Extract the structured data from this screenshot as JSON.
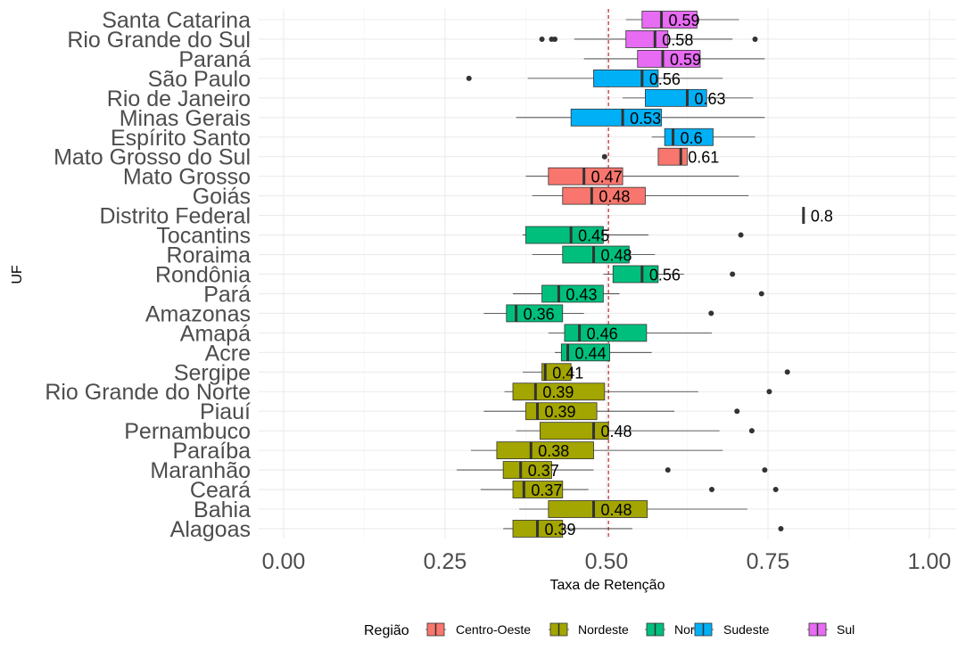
{
  "chart_data": {
    "type": "boxplot",
    "orientation": "horizontal",
    "xlabel": "Taxa de Retenção",
    "ylabel": "UF",
    "xlim": [
      -0.03,
      1.05
    ],
    "xticks": [
      "0.00",
      "0.25",
      "0.50",
      "0.75",
      "1.00"
    ],
    "xtick_values": [
      0,
      0.25,
      0.5,
      0.75,
      1.0
    ],
    "reference_line": {
      "x": 0.503,
      "color": "#c0272d",
      "style": "dashed"
    },
    "legend": {
      "title": "Região",
      "placement": "bottom",
      "items": [
        {
          "name": "Centro-Oeste",
          "color": "#f8766d"
        },
        {
          "name": "Nordeste",
          "color": "#a3a500"
        },
        {
          "name": "Norte",
          "color": "#00bf7d"
        },
        {
          "name": "Sudeste",
          "color": "#00b0f6"
        },
        {
          "name": "Sul",
          "color": "#e76bf3"
        }
      ]
    },
    "categories": [
      {
        "uf": "Santa Catarina",
        "region": "Sul",
        "min": 0.53,
        "q1": 0.555,
        "median": 0.585,
        "q3": 0.64,
        "max": 0.705,
        "outliers": [],
        "label": "0.59"
      },
      {
        "uf": "Rio Grande do Sul",
        "region": "Sul",
        "min": 0.45,
        "q1": 0.53,
        "median": 0.575,
        "q3": 0.595,
        "max": 0.695,
        "outliers": [
          0.4,
          0.415,
          0.42,
          0.73
        ],
        "label": "0.58"
      },
      {
        "uf": "Paraná",
        "region": "Sul",
        "min": 0.465,
        "q1": 0.548,
        "median": 0.587,
        "q3": 0.645,
        "max": 0.745,
        "outliers": [],
        "label": "0.59"
      },
      {
        "uf": "São Paulo",
        "region": "Sudeste",
        "min": 0.378,
        "q1": 0.48,
        "median": 0.555,
        "q3": 0.58,
        "max": 0.68,
        "outliers": [
          0.287
        ],
        "label": "0.56"
      },
      {
        "uf": "Rio de Janeiro",
        "region": "Sudeste",
        "min": 0.525,
        "q1": 0.56,
        "median": 0.625,
        "q3": 0.655,
        "max": 0.727,
        "outliers": [],
        "label": "0.63"
      },
      {
        "uf": "Minas Gerais",
        "region": "Sudeste",
        "min": 0.36,
        "q1": 0.445,
        "median": 0.525,
        "q3": 0.585,
        "max": 0.745,
        "outliers": [],
        "label": "0.53"
      },
      {
        "uf": "Espírito Santo",
        "region": "Sudeste",
        "min": 0.57,
        "q1": 0.59,
        "median": 0.603,
        "q3": 0.665,
        "max": 0.73,
        "outliers": [],
        "label": "0.6"
      },
      {
        "uf": "Mato Grosso do Sul",
        "region": "Centro-Oeste",
        "min": 0.58,
        "q1": 0.58,
        "median": 0.615,
        "q3": 0.625,
        "max": 0.625,
        "outliers": [
          0.497
        ],
        "label": "0.61"
      },
      {
        "uf": "Mato Grosso",
        "region": "Centro-Oeste",
        "min": 0.375,
        "q1": 0.41,
        "median": 0.465,
        "q3": 0.525,
        "max": 0.705,
        "outliers": [],
        "label": "0.47"
      },
      {
        "uf": "Goiás",
        "region": "Centro-Oeste",
        "min": 0.385,
        "q1": 0.432,
        "median": 0.477,
        "q3": 0.56,
        "max": 0.72,
        "outliers": [],
        "label": "0.48"
      },
      {
        "uf": "Distrito Federal",
        "region": "Centro-Oeste",
        "min": 0.805,
        "q1": 0.805,
        "median": 0.805,
        "q3": 0.805,
        "max": 0.805,
        "outliers": [],
        "label": "0.8"
      },
      {
        "uf": "Tocantins",
        "region": "Norte",
        "min": 0.37,
        "q1": 0.375,
        "median": 0.445,
        "q3": 0.495,
        "max": 0.565,
        "outliers": [
          0.708
        ],
        "label": "0.45"
      },
      {
        "uf": "Roraima",
        "region": "Norte",
        "min": 0.385,
        "q1": 0.432,
        "median": 0.48,
        "q3": 0.535,
        "max": 0.575,
        "outliers": [],
        "label": "0.48"
      },
      {
        "uf": "Rondônia",
        "region": "Norte",
        "min": 0.495,
        "q1": 0.51,
        "median": 0.555,
        "q3": 0.58,
        "max": 0.62,
        "outliers": [
          0.695
        ],
        "label": "0.56"
      },
      {
        "uf": "Pará",
        "region": "Norte",
        "min": 0.355,
        "q1": 0.4,
        "median": 0.426,
        "q3": 0.495,
        "max": 0.52,
        "outliers": [
          0.74
        ],
        "label": "0.43"
      },
      {
        "uf": "Amazonas",
        "region": "Norte",
        "min": 0.31,
        "q1": 0.345,
        "median": 0.36,
        "q3": 0.432,
        "max": 0.465,
        "outliers": [
          0.662
        ],
        "label": "0.36"
      },
      {
        "uf": "Amapá",
        "region": "Norte",
        "min": 0.41,
        "q1": 0.435,
        "median": 0.458,
        "q3": 0.562,
        "max": 0.663,
        "outliers": [],
        "label": "0.46"
      },
      {
        "uf": "Acre",
        "region": "Norte",
        "min": 0.42,
        "q1": 0.43,
        "median": 0.44,
        "q3": 0.505,
        "max": 0.57,
        "outliers": [],
        "label": "0.44"
      },
      {
        "uf": "Sergipe",
        "region": "Nordeste",
        "min": 0.37,
        "q1": 0.4,
        "median": 0.405,
        "q3": 0.445,
        "max": 0.45,
        "outliers": [
          0.78
        ],
        "label": "0.41"
      },
      {
        "uf": "Rio Grande do Norte",
        "region": "Nordeste",
        "min": 0.342,
        "q1": 0.355,
        "median": 0.39,
        "q3": 0.497,
        "max": 0.642,
        "outliers": [
          0.752
        ],
        "label": "0.39"
      },
      {
        "uf": "Piauí",
        "region": "Nordeste",
        "min": 0.31,
        "q1": 0.375,
        "median": 0.393,
        "q3": 0.485,
        "max": 0.605,
        "outliers": [
          0.702
        ],
        "label": "0.39"
      },
      {
        "uf": "Pernambuco",
        "region": "Nordeste",
        "min": 0.36,
        "q1": 0.397,
        "median": 0.48,
        "q3": 0.503,
        "max": 0.675,
        "outliers": [
          0.725
        ],
        "label": "0.48"
      },
      {
        "uf": "Paraíba",
        "region": "Nordeste",
        "min": 0.29,
        "q1": 0.33,
        "median": 0.383,
        "q3": 0.48,
        "max": 0.68,
        "outliers": [],
        "label": "0.38"
      },
      {
        "uf": "Maranhão",
        "region": "Nordeste",
        "min": 0.268,
        "q1": 0.34,
        "median": 0.367,
        "q3": 0.415,
        "max": 0.48,
        "outliers": [
          0.595,
          0.745
        ],
        "label": "0.37"
      },
      {
        "uf": "Ceará",
        "region": "Nordeste",
        "min": 0.305,
        "q1": 0.355,
        "median": 0.372,
        "q3": 0.432,
        "max": 0.472,
        "outliers": [
          0.663,
          0.762
        ],
        "label": "0.37"
      },
      {
        "uf": "Bahia",
        "region": "Nordeste",
        "min": 0.365,
        "q1": 0.41,
        "median": 0.48,
        "q3": 0.563,
        "max": 0.718,
        "outliers": [],
        "label": "0.48"
      },
      {
        "uf": "Alagoas",
        "region": "Nordeste",
        "min": 0.34,
        "q1": 0.355,
        "median": 0.393,
        "q3": 0.432,
        "max": 0.54,
        "outliers": [
          0.77
        ],
        "label": "0.39"
      }
    ]
  }
}
